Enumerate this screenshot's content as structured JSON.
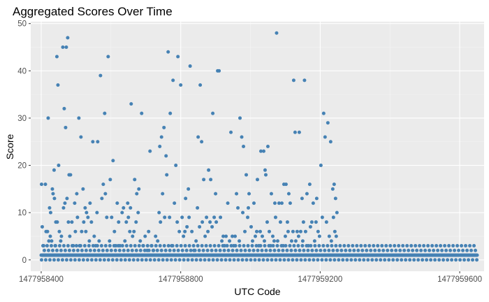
{
  "chart_data": {
    "type": "scatter",
    "title": "Aggregated Scores Over Time",
    "xlabel": "UTC Code",
    "ylabel": "Score",
    "xlim": [
      1477958370,
      1477959670
    ],
    "ylim": [
      -2.4,
      50.4
    ],
    "x_ticks": [
      1477958400,
      1477958800,
      1477959200,
      1477959600
    ],
    "x_tick_labels": [
      "1477958400",
      "1477958800",
      "1477959200",
      "1477959600"
    ],
    "y_ticks": [
      0,
      10,
      20,
      30,
      40,
      50
    ],
    "y_tick_labels": [
      "0",
      "10",
      "20",
      "30",
      "40",
      "50"
    ],
    "grid": true,
    "legend": "none",
    "colors": {
      "panel": "#EBEBEB",
      "grid_major": "#FFFFFF",
      "point": "#4682B4",
      "tick_text": "#4D4D4D"
    },
    "x_start": 1477958400,
    "x_end": 1477959650,
    "x_step": 2,
    "background_value": 1,
    "background_alt_values": [
      0,
      2,
      3
    ],
    "points": [
      [
        1477958401,
        16
      ],
      [
        1477958412,
        16
      ],
      [
        1477958420,
        30
      ],
      [
        1477958424,
        11
      ],
      [
        1477958427,
        10
      ],
      [
        1477958432,
        15
      ],
      [
        1477958434,
        14
      ],
      [
        1477958437,
        19
      ],
      [
        1477958445,
        43
      ],
      [
        1477958448,
        37
      ],
      [
        1477958450,
        20
      ],
      [
        1477958462,
        45
      ],
      [
        1477958466,
        32
      ],
      [
        1477958470,
        28
      ],
      [
        1477958472,
        45
      ],
      [
        1477958476,
        47
      ],
      [
        1477958480,
        18
      ],
      [
        1477958484,
        18
      ],
      [
        1477958496,
        12
      ],
      [
        1477958502,
        14
      ],
      [
        1477958508,
        30
      ],
      [
        1477958514,
        26
      ],
      [
        1477958520,
        15
      ],
      [
        1477958526,
        11
      ],
      [
        1477958530,
        10
      ],
      [
        1477958540,
        12
      ],
      [
        1477958548,
        25
      ],
      [
        1477958562,
        25
      ],
      [
        1477958570,
        39
      ],
      [
        1477958578,
        16
      ],
      [
        1477958582,
        31
      ],
      [
        1477958592,
        43
      ],
      [
        1477958598,
        17
      ],
      [
        1477958606,
        21
      ],
      [
        1477958618,
        12
      ],
      [
        1477958636,
        11
      ],
      [
        1477958648,
        12
      ],
      [
        1477958656,
        11
      ],
      [
        1477958658,
        33
      ],
      [
        1477958668,
        17
      ],
      [
        1477958674,
        14
      ],
      [
        1477958680,
        15
      ],
      [
        1477958688,
        31
      ],
      [
        1477958712,
        23
      ],
      [
        1477958740,
        24
      ],
      [
        1477958745,
        26
      ],
      [
        1477958752,
        28
      ],
      [
        1477958758,
        22
      ],
      [
        1477958764,
        44
      ],
      [
        1477958770,
        31
      ],
      [
        1477958778,
        38
      ],
      [
        1477958786,
        20
      ],
      [
        1477958792,
        43
      ],
      [
        1477958800,
        37
      ],
      [
        1477958814,
        13
      ],
      [
        1477958822,
        15
      ],
      [
        1477958827,
        41
      ],
      [
        1477958850,
        26
      ],
      [
        1477958856,
        37
      ],
      [
        1477958860,
        25
      ],
      [
        1477958866,
        17
      ],
      [
        1477958880,
        19
      ],
      [
        1477958886,
        17
      ],
      [
        1477958892,
        31
      ],
      [
        1477958900,
        14
      ],
      [
        1477958906,
        40
      ],
      [
        1477958910,
        40
      ],
      [
        1477958935,
        12
      ],
      [
        1477958944,
        27
      ],
      [
        1477958960,
        14
      ],
      [
        1477958970,
        30
      ],
      [
        1477958975,
        26
      ],
      [
        1477958980,
        24
      ],
      [
        1477958988,
        18
      ],
      [
        1477958996,
        14
      ],
      [
        1477959010,
        12
      ],
      [
        1477959020,
        17
      ],
      [
        1477959030,
        23
      ],
      [
        1477959038,
        23
      ],
      [
        1477959042,
        19
      ],
      [
        1477959044,
        18
      ],
      [
        1477959050,
        24
      ],
      [
        1477959060,
        14
      ],
      [
        1477959070,
        12
      ],
      [
        1477959075,
        48
      ],
      [
        1477959082,
        12
      ],
      [
        1477959090,
        12
      ],
      [
        1477959096,
        16
      ],
      [
        1477959102,
        16
      ],
      [
        1477959110,
        14
      ],
      [
        1477959114,
        12
      ],
      [
        1477959124,
        38
      ],
      [
        1477959128,
        27
      ],
      [
        1477959140,
        27
      ],
      [
        1477959148,
        13
      ],
      [
        1477959155,
        38
      ],
      [
        1477959162,
        14
      ],
      [
        1477959170,
        16
      ],
      [
        1477959180,
        12
      ],
      [
        1477959190,
        13
      ],
      [
        1477959202,
        20
      ],
      [
        1477959210,
        31
      ],
      [
        1477959214,
        26
      ],
      [
        1477959222,
        29
      ],
      [
        1477959230,
        25
      ],
      [
        1477959236,
        15
      ],
      [
        1477959240,
        16
      ],
      [
        1477959244,
        13
      ],
      [
        1477959248,
        10
      ],
      [
        1477958403,
        7
      ],
      [
        1477958407,
        3
      ],
      [
        1477958414,
        6
      ],
      [
        1477958418,
        6
      ],
      [
        1477958422,
        4
      ],
      [
        1477958426,
        5
      ],
      [
        1477958430,
        4
      ],
      [
        1477958438,
        13
      ],
      [
        1477958440,
        3
      ],
      [
        1477958442,
        8
      ],
      [
        1477958446,
        8
      ],
      [
        1477958452,
        6
      ],
      [
        1477958456,
        4
      ],
      [
        1477958458,
        5
      ],
      [
        1477958464,
        11
      ],
      [
        1477958468,
        12
      ],
      [
        1477958474,
        13
      ],
      [
        1477958478,
        8
      ],
      [
        1477958482,
        5
      ],
      [
        1477958488,
        8
      ],
      [
        1477958492,
        3
      ],
      [
        1477958498,
        6
      ],
      [
        1477958504,
        9
      ],
      [
        1477958510,
        3
      ],
      [
        1477958516,
        6
      ],
      [
        1477958522,
        8
      ],
      [
        1477958528,
        6
      ],
      [
        1477958534,
        9
      ],
      [
        1477958538,
        4
      ],
      [
        1477958544,
        8
      ],
      [
        1477958552,
        5
      ],
      [
        1477958556,
        3
      ],
      [
        1477958560,
        10
      ],
      [
        1477958566,
        4
      ],
      [
        1477958574,
        13
      ],
      [
        1477958584,
        14
      ],
      [
        1477958588,
        9
      ],
      [
        1477958596,
        4
      ],
      [
        1477958602,
        9
      ],
      [
        1477958610,
        6
      ],
      [
        1477958614,
        3
      ],
      [
        1477958622,
        8
      ],
      [
        1477958626,
        3
      ],
      [
        1477958632,
        10
      ],
      [
        1477958640,
        4
      ],
      [
        1477958644,
        8
      ],
      [
        1477958650,
        9
      ],
      [
        1477958654,
        6
      ],
      [
        1477958662,
        5
      ],
      [
        1477958666,
        6
      ],
      [
        1477958672,
        8
      ],
      [
        1477958678,
        10
      ],
      [
        1477958684,
        4
      ],
      [
        1477958692,
        3
      ],
      [
        1477958698,
        5
      ],
      [
        1477958704,
        2
      ],
      [
        1477958708,
        6
      ],
      [
        1477958716,
        3
      ],
      [
        1477958722,
        2
      ],
      [
        1477958728,
        5
      ],
      [
        1477958734,
        4
      ],
      [
        1477958738,
        10
      ],
      [
        1477958742,
        8
      ],
      [
        1477958748,
        14
      ],
      [
        1477958754,
        9
      ],
      [
        1477958760,
        18
      ],
      [
        1477958768,
        9
      ],
      [
        1477958774,
        3
      ],
      [
        1477958782,
        12
      ],
      [
        1477958790,
        8
      ],
      [
        1477958796,
        6
      ],
      [
        1477958804,
        9
      ],
      [
        1477958808,
        5
      ],
      [
        1477958812,
        6
      ],
      [
        1477958818,
        7
      ],
      [
        1477958824,
        9
      ],
      [
        1477958832,
        6
      ],
      [
        1477958838,
        2
      ],
      [
        1477958844,
        4
      ],
      [
        1477958848,
        11
      ],
      [
        1477958854,
        7
      ],
      [
        1477958862,
        8
      ],
      [
        1477958870,
        5
      ],
      [
        1477958874,
        9
      ],
      [
        1477958878,
        6
      ],
      [
        1477958884,
        8
      ],
      [
        1477958890,
        7
      ],
      [
        1477958896,
        9
      ],
      [
        1477958902,
        8
      ],
      [
        1477958914,
        9
      ],
      [
        1477958918,
        4
      ],
      [
        1477958922,
        5
      ],
      [
        1477958926,
        3
      ],
      [
        1477958930,
        5
      ],
      [
        1477958940,
        4
      ],
      [
        1477958948,
        5
      ],
      [
        1477958952,
        3
      ],
      [
        1477958956,
        5
      ],
      [
        1477958964,
        11
      ],
      [
        1477958968,
        4
      ],
      [
        1477958978,
        10
      ],
      [
        1477958984,
        6
      ],
      [
        1477958992,
        9
      ],
      [
        1477958994,
        11
      ],
      [
        1477959002,
        7
      ],
      [
        1477959006,
        4
      ],
      [
        1477959014,
        5
      ],
      [
        1477959018,
        6
      ],
      [
        1477959024,
        3
      ],
      [
        1477959028,
        6
      ],
      [
        1477959034,
        5
      ],
      [
        1477959040,
        4
      ],
      [
        1477959048,
        8
      ],
      [
        1477959054,
        6
      ],
      [
        1477959058,
        3
      ],
      [
        1477959064,
        5
      ],
      [
        1477959068,
        4
      ],
      [
        1477959072,
        9
      ],
      [
        1477959078,
        4
      ],
      [
        1477959086,
        8
      ],
      [
        1477959094,
        3
      ],
      [
        1477959100,
        5
      ],
      [
        1477959106,
        8
      ],
      [
        1477959108,
        6
      ],
      [
        1477959118,
        4
      ],
      [
        1477959122,
        6
      ],
      [
        1477959130,
        4
      ],
      [
        1477959134,
        6
      ],
      [
        1477959138,
        5
      ],
      [
        1477959144,
        6
      ],
      [
        1477959150,
        4
      ],
      [
        1477959152,
        8
      ],
      [
        1477959158,
        6
      ],
      [
        1477959166,
        3
      ],
      [
        1477959172,
        7
      ],
      [
        1477959176,
        8
      ],
      [
        1477959184,
        4
      ],
      [
        1477959188,
        8
      ],
      [
        1477959194,
        6
      ],
      [
        1477959198,
        5
      ],
      [
        1477959206,
        9
      ],
      [
        1477959218,
        8
      ],
      [
        1477959226,
        5
      ],
      [
        1477959232,
        4
      ],
      [
        1477959238,
        9
      ],
      [
        1477959242,
        6
      ],
      [
        1477959246,
        5
      ]
    ]
  }
}
